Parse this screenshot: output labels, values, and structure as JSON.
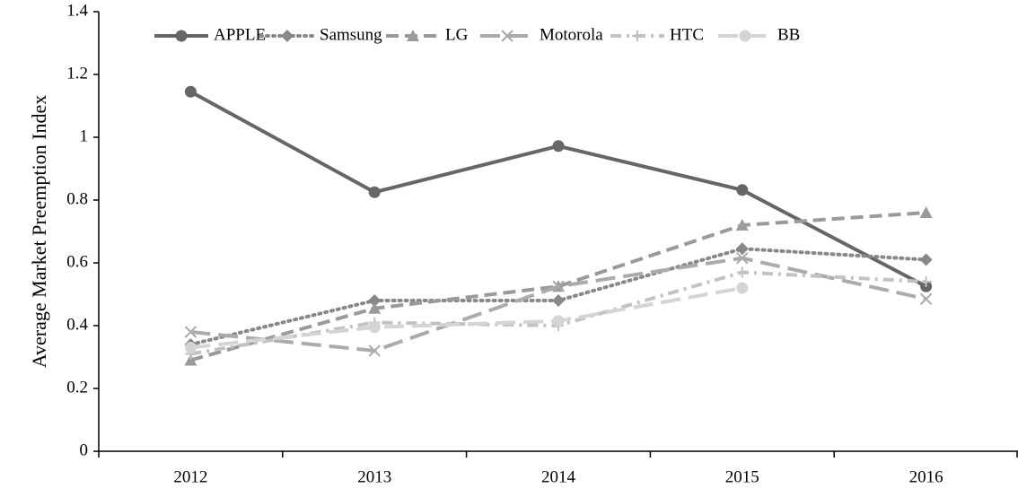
{
  "chart_data": {
    "type": "line",
    "y_label": "Average Market Preemption Index",
    "categories": [
      "2012",
      "2013",
      "2014",
      "2015",
      "2016"
    ],
    "series": [
      {
        "name": "APPLE",
        "color": "#666666",
        "dash": "solid",
        "marker": "circle",
        "values": [
          1.145,
          0.825,
          0.972,
          0.832,
          0.525
        ]
      },
      {
        "name": "Samsung",
        "color": "#888888",
        "dash": "dot",
        "marker": "diamond",
        "values": [
          0.34,
          0.48,
          0.48,
          0.645,
          0.61
        ]
      },
      {
        "name": "LG",
        "color": "#9a9a9a",
        "dash": "dash",
        "marker": "triangle",
        "values": [
          0.29,
          0.455,
          0.525,
          0.72,
          0.76
        ]
      },
      {
        "name": "Motorola",
        "color": "#ababab",
        "dash": "longdash",
        "marker": "x",
        "values": [
          0.38,
          0.32,
          0.525,
          0.615,
          0.485
        ]
      },
      {
        "name": "HTC",
        "color": "#c2c2c2",
        "dash": "dashdot",
        "marker": "plus",
        "values": [
          0.31,
          0.41,
          0.4,
          0.57,
          0.54
        ]
      },
      {
        "name": "BB",
        "color": "#d4d4d4",
        "dash": "longdash",
        "marker": "circle",
        "values": [
          0.33,
          0.395,
          0.415,
          0.52,
          null
        ]
      }
    ],
    "ylim": [
      0,
      1.4
    ],
    "yticks": [
      0,
      0.2,
      0.4,
      0.6,
      0.8,
      1,
      1.2,
      1.4
    ],
    "grid": false,
    "legend": "top"
  }
}
